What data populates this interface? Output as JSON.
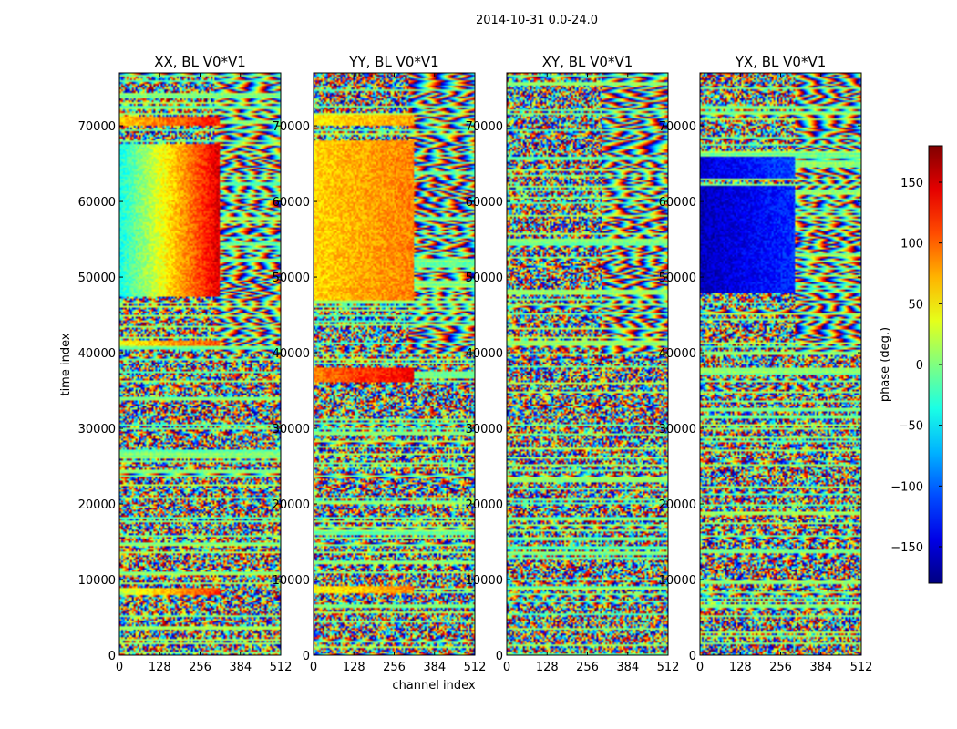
{
  "chart_data": {
    "type": "heatmap",
    "suptitle": "2014-10-31 0.0-24.0",
    "xlabel": "channel index",
    "ylabel": "time index",
    "xlim": [
      0,
      512
    ],
    "ylim": [
      0,
      77000
    ],
    "x_ticks": [
      "0",
      "128",
      "256",
      "384",
      "512"
    ],
    "x_tick_values": [
      0,
      128,
      256,
      384,
      512
    ],
    "y_ticks": [
      "0",
      "10000",
      "20000",
      "30000",
      "40000",
      "50000",
      "60000",
      "70000"
    ],
    "y_tick_values": [
      0,
      10000,
      20000,
      30000,
      40000,
      50000,
      60000,
      70000
    ],
    "colorbar": {
      "label": "phase (deg.)",
      "range": [
        -180,
        180
      ],
      "ticks": [
        "−150",
        "−100",
        "−50",
        "0",
        "50",
        "100",
        "150"
      ],
      "tick_values": [
        -150,
        -100,
        -50,
        0,
        50,
        100,
        150
      ],
      "colormap": "jet",
      "bottom_note": "......"
    },
    "panels": [
      {
        "title": "XX, BL V0*V1",
        "seed": 11,
        "coherent": [
          {
            "t0": 47500,
            "t1": 67500,
            "c0": 0,
            "c1": 320,
            "p0": -40,
            "p1": 150
          },
          {
            "t0": 70000,
            "t1": 71200,
            "c0": 0,
            "c1": 320,
            "p0": 60,
            "p1": 130
          },
          {
            "t0": 8000,
            "t1": 9000,
            "c0": 0,
            "c1": 320,
            "p0": 20,
            "p1": 120
          },
          {
            "t0": 40800,
            "t1": 41600,
            "c0": 0,
            "c1": 320,
            "p0": 40,
            "p1": 110
          }
        ]
      },
      {
        "title": "YY, BL V0*V1",
        "seed": 23,
        "coherent": [
          {
            "t0": 47000,
            "t1": 68000,
            "c0": 0,
            "c1": 320,
            "p0": 60,
            "p1": 90
          },
          {
            "t0": 70000,
            "t1": 71500,
            "c0": 0,
            "c1": 320,
            "p0": 50,
            "p1": 80
          },
          {
            "t0": 8200,
            "t1": 9200,
            "c0": 0,
            "c1": 320,
            "p0": 40,
            "p1": 90
          },
          {
            "t0": 36000,
            "t1": 38000,
            "c0": 0,
            "c1": 320,
            "p0": 90,
            "p1": 140
          }
        ]
      },
      {
        "title": "XY, BL V0*V1",
        "seed": 37,
        "coherent": []
      },
      {
        "title": "YX, BL V0*V1",
        "seed": 51,
        "coherent": [
          {
            "t0": 48000,
            "t1": 62000,
            "c0": 0,
            "c1": 300,
            "p0": -160,
            "p1": -120
          },
          {
            "t0": 63000,
            "t1": 66000,
            "c0": 0,
            "c1": 300,
            "p0": -150,
            "p1": -110
          }
        ]
      }
    ]
  }
}
